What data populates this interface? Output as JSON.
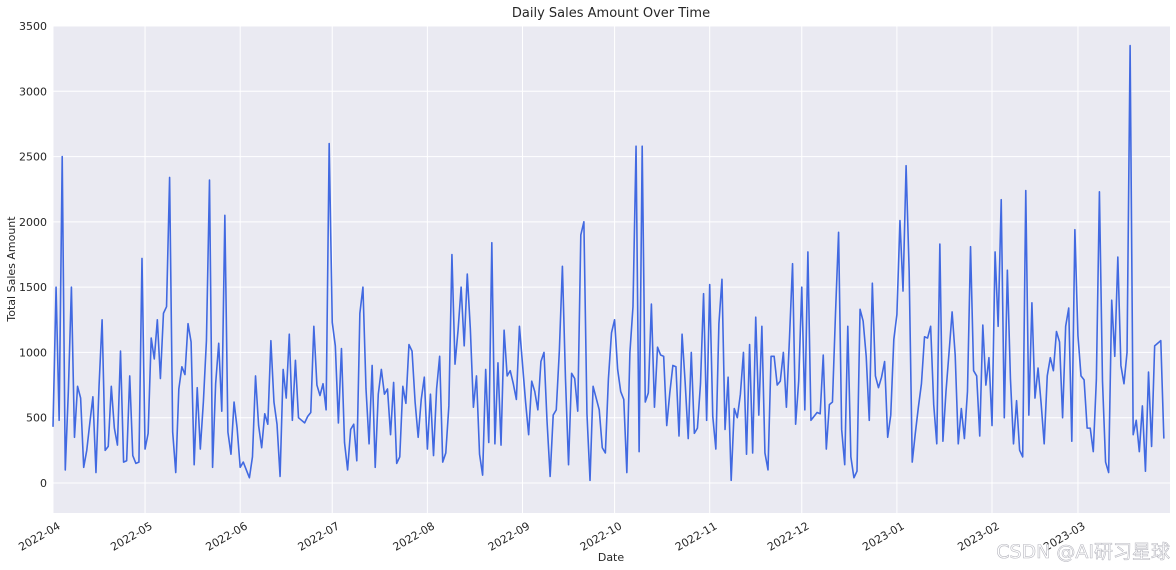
{
  "watermark": "CSDN @AI研习星球",
  "chart_data": {
    "type": "line",
    "title": "Daily Sales Amount Over Time",
    "xlabel": "Date",
    "ylabel": "Total Sales Amount",
    "ylim": [
      -230,
      3500
    ],
    "xlim": [
      "2022-04-01",
      "2023-03-31"
    ],
    "yticks": [
      0,
      500,
      1000,
      1500,
      2000,
      2500,
      3000,
      3500
    ],
    "xticks": [
      "2022-04",
      "2022-05",
      "2022-06",
      "2022-07",
      "2022-08",
      "2022-09",
      "2022-10",
      "2022-11",
      "2022-12",
      "2023-01",
      "2023-02",
      "2023-03"
    ],
    "grid": true,
    "line_color": "#4169e1",
    "background_color": "#eaeaf2",
    "series": [
      {
        "start_date": "2022-04-01",
        "frequency": "daily",
        "values": [
          430,
          1500,
          480,
          2500,
          100,
          700,
          1500,
          350,
          740,
          650,
          120,
          250,
          460,
          660,
          80,
          740,
          1250,
          250,
          280,
          740,
          420,
          290,
          1010,
          160,
          170,
          820,
          210,
          150,
          160,
          1720,
          260,
          380,
          1110,
          950,
          1250,
          800,
          1300,
          1350,
          2340,
          390,
          80,
          720,
          890,
          830,
          1220,
          1080,
          140,
          730,
          260,
          620,
          1090,
          2320,
          120,
          760,
          1070,
          550,
          2050,
          390,
          220,
          620,
          420,
          120,
          160,
          100,
          40,
          200,
          820,
          440,
          270,
          530,
          450,
          1090,
          620,
          450,
          50,
          870,
          650,
          1140,
          480,
          940,
          500,
          480,
          460,
          510,
          540,
          1200,
          750,
          670,
          760,
          560,
          2600,
          1230,
          1050,
          460,
          1030,
          310,
          100,
          410,
          450,
          170,
          1300,
          1500,
          720,
          300,
          900,
          120,
          680,
          870,
          680,
          720,
          370,
          770,
          150,
          200,
          740,
          610,
          1060,
          1010,
          620,
          350,
          640,
          810,
          260,
          680,
          210,
          720,
          970,
          160,
          230,
          590,
          1750,
          910,
          1170,
          1500,
          1050,
          1600,
          1180,
          580,
          820,
          220,
          60,
          870,
          310,
          1840,
          300,
          920,
          290,
          1170,
          820,
          860,
          760,
          640,
          1200,
          910,
          620,
          370,
          780,
          700,
          560,
          930,
          1000,
          470,
          50,
          520,
          560,
          1010,
          1660,
          800,
          140,
          840,
          800,
          550,
          1900,
          2000,
          530,
          20,
          740,
          650,
          560,
          270,
          230,
          800,
          1150,
          1250,
          870,
          700,
          640,
          80,
          1000,
          1350,
          2580,
          240,
          2580,
          620,
          690,
          1370,
          580,
          1040,
          980,
          970,
          440,
          690,
          900,
          890,
          360,
          1140,
          770,
          340,
          1000,
          380,
          420,
          760,
          1450,
          480,
          1520,
          510,
          260,
          1220,
          1560,
          410,
          810,
          20,
          570,
          500,
          680,
          1000,
          220,
          1060,
          230,
          1270,
          520,
          1200,
          230,
          100,
          970,
          970,
          750,
          780,
          1000,
          580,
          1110,
          1680,
          450,
          780,
          1500,
          560,
          1770,
          480,
          510,
          540,
          530,
          980,
          260,
          600,
          620,
          1300,
          1920,
          410,
          140,
          1200,
          200,
          40,
          90,
          1330,
          1240,
          970,
          480,
          1530,
          820,
          730,
          810,
          930,
          350,
          520,
          1100,
          1290,
          2010,
          1470,
          2430,
          1620,
          160,
          380,
          580,
          760,
          1120,
          1110,
          1200,
          600,
          300,
          1830,
          320,
          700,
          1000,
          1310,
          980,
          300,
          570,
          340,
          700,
          1810,
          860,
          820,
          360,
          1210,
          750,
          960,
          440,
          1770,
          1200,
          2170,
          500,
          1630,
          800,
          300,
          630,
          250,
          200,
          2240,
          520,
          1380,
          650,
          880,
          610,
          300,
          820,
          960,
          860,
          1160,
          1080,
          500,
          1200,
          1340,
          320,
          1940,
          1130,
          820,
          790,
          420,
          420,
          240,
          790,
          2230,
          780,
          160,
          80,
          1400,
          970,
          1730,
          900,
          760,
          1000,
          3350,
          370,
          480,
          240,
          590,
          90,
          850,
          280,
          1050,
          1070,
          1090,
          340
        ]
      }
    ]
  }
}
